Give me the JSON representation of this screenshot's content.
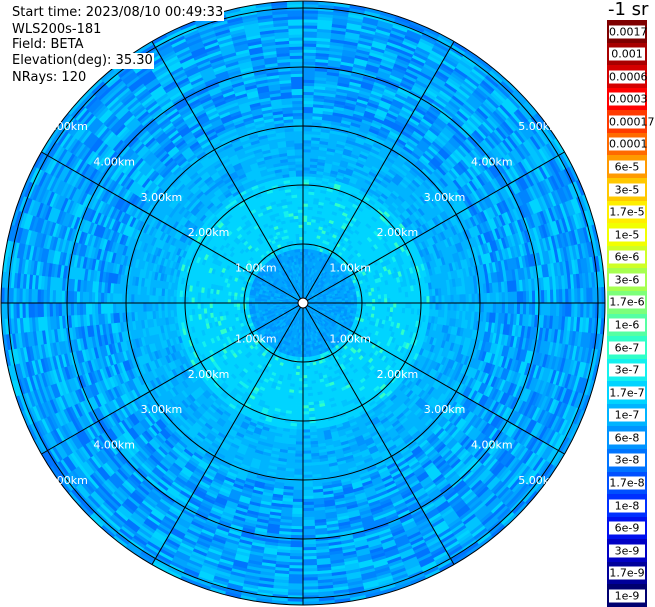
{
  "header": {
    "start_time": "Start time: 2023/08/10 00:49:33",
    "instrument": "WLS200s-181",
    "field": "Field: BETA",
    "elevation": "Elevation(deg): 35.30",
    "nrays": "NRays: 120"
  },
  "units_label": "-1 sr",
  "range_labels": [
    "1.00km",
    "2.00km",
    "3.00km",
    "4.00km",
    "5.00km"
  ],
  "colorbar": [
    {
      "label": "0.0017",
      "color": "#7f0000"
    },
    {
      "label": "0.001",
      "color": "#a80000"
    },
    {
      "label": "0.0006",
      "color": "#d40000"
    },
    {
      "label": "0.0003",
      "color": "#ff0000"
    },
    {
      "label": "0.00017",
      "color": "#ff3a00"
    },
    {
      "label": "0.0001",
      "color": "#ff6a00"
    },
    {
      "label": "6e-5",
      "color": "#ff9a00"
    },
    {
      "label": "3e-5",
      "color": "#ffc800"
    },
    {
      "label": "1.7e-5",
      "color": "#ffee00"
    },
    {
      "label": "1e-5",
      "color": "#f2ff00"
    },
    {
      "label": "6e-6",
      "color": "#cfff26"
    },
    {
      "label": "3e-6",
      "color": "#a6ff50"
    },
    {
      "label": "1.7e-6",
      "color": "#7dff7a"
    },
    {
      "label": "1e-6",
      "color": "#55ffa3"
    },
    {
      "label": "6e-7",
      "color": "#30ffc8"
    },
    {
      "label": "3e-7",
      "color": "#14f0ee"
    },
    {
      "label": "1.7e-7",
      "color": "#00d4ff"
    },
    {
      "label": "1e-7",
      "color": "#00b4ff"
    },
    {
      "label": "6e-8",
      "color": "#0094ff"
    },
    {
      "label": "3e-8",
      "color": "#0074ff"
    },
    {
      "label": "1.7e-8",
      "color": "#0050ff"
    },
    {
      "label": "1e-8",
      "color": "#0030ff"
    },
    {
      "label": "6e-9",
      "color": "#0010ee"
    },
    {
      "label": "3e-9",
      "color": "#0000c4"
    },
    {
      "label": "1.7e-9",
      "color": "#00009a"
    },
    {
      "label": "1e-9",
      "color": "#000070"
    }
  ]
}
